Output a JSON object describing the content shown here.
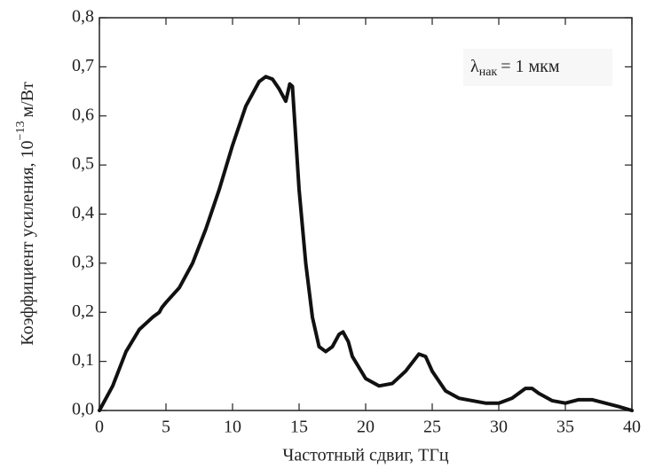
{
  "chart_data": {
    "type": "line",
    "xlabel": "Частотный сдвиг, ТГц",
    "ylabel": "Коэффициент усиления, 10",
    "ylabel_exponent": "−13",
    "ylabel_unit": "м/Вт",
    "annotation": {
      "symbol": "λ",
      "subscript": "нак",
      "text": "= 1 мкм"
    },
    "x": [
      0,
      1,
      2,
      3,
      4,
      4.5,
      4.7,
      5,
      6,
      7,
      8,
      9,
      10,
      11,
      12,
      12.5,
      13,
      13.5,
      14,
      14.3,
      14.5,
      15,
      15.5,
      16,
      16.5,
      17,
      17.5,
      18,
      18.3,
      18.7,
      19,
      20,
      21,
      22,
      23,
      24,
      24.5,
      25,
      26,
      27,
      28,
      29,
      30,
      31,
      32,
      32.5,
      33,
      34,
      35,
      36,
      37,
      38,
      39,
      40
    ],
    "series": [
      {
        "color": "#111111",
        "values": [
          0,
          0.05,
          0.12,
          0.165,
          0.19,
          0.2,
          0.21,
          0.22,
          0.25,
          0.3,
          0.37,
          0.45,
          0.54,
          0.62,
          0.67,
          0.68,
          0.675,
          0.655,
          0.63,
          0.665,
          0.66,
          0.45,
          0.3,
          0.19,
          0.13,
          0.12,
          0.13,
          0.155,
          0.16,
          0.14,
          0.11,
          0.065,
          0.05,
          0.055,
          0.08,
          0.115,
          0.11,
          0.08,
          0.04,
          0.025,
          0.02,
          0.015,
          0.015,
          0.025,
          0.045,
          0.045,
          0.035,
          0.02,
          0.015,
          0.022,
          0.022,
          0.015,
          0.008,
          0
        ]
      }
    ],
    "xlim": [
      0,
      40
    ],
    "xticks": [
      0,
      5,
      10,
      15,
      20,
      25,
      30,
      35,
      40
    ],
    "ylim": [
      0,
      0.8
    ],
    "yticks": [
      {
        "value": 0,
        "label": "0,0"
      },
      {
        "value": 0.1,
        "label": "0,1"
      },
      {
        "value": 0.2,
        "label": "0,2"
      },
      {
        "value": 0.3,
        "label": "0,3"
      },
      {
        "value": 0.4,
        "label": "0,4"
      },
      {
        "value": 0.5,
        "label": "0,5"
      },
      {
        "value": 0.6,
        "label": "0,6"
      },
      {
        "value": 0.7,
        "label": "0,7"
      },
      {
        "value": 0.8,
        "label": "0,8"
      }
    ]
  }
}
